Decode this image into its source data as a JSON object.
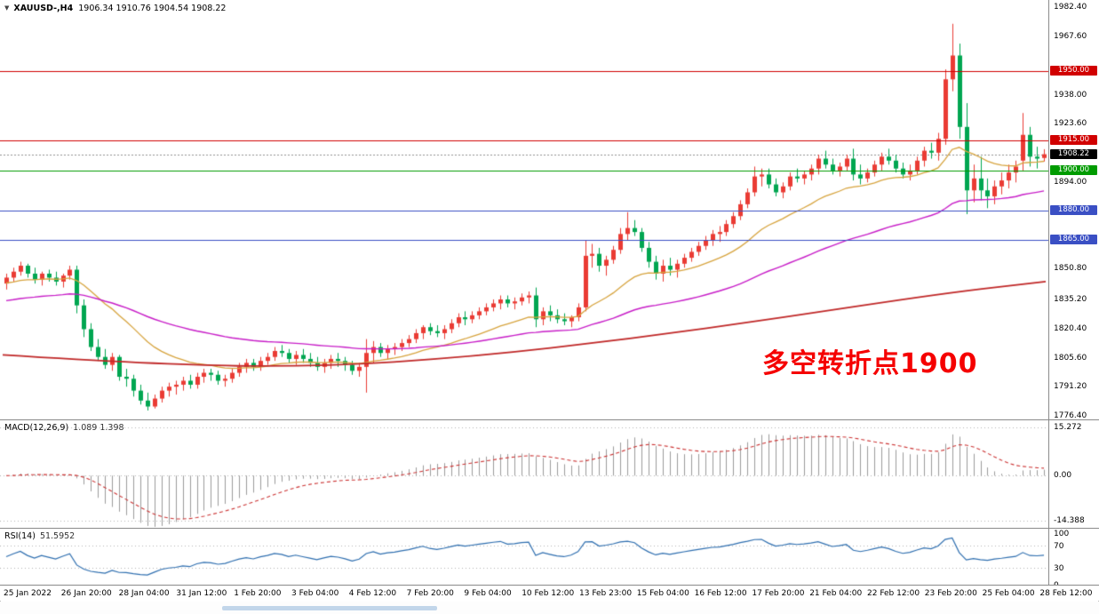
{
  "header": {
    "symbol_period": "XAUUSD-,H4",
    "ohlc": "1906.34 1910.76 1904.54 1908.22"
  },
  "annotation": {
    "text": "多空转折点1900",
    "color": "#f50000"
  },
  "indicators_panel": {
    "macd": {
      "label": "MACD(12,26,9)",
      "values": "1.089 1.398"
    },
    "rsi": {
      "label": "RSI(14)",
      "value": "51.5952"
    }
  },
  "chart_data": {
    "type": "candlestick",
    "symbol": "XAUUSD-",
    "timeframe": "H4",
    "title": "XAUUSD- H4 candlestick chart with MACD and RSI",
    "price_range": [
      1774.5,
      1986.0
    ],
    "y_ticks": [
      "1982.40",
      "1967.60",
      "1938.00",
      "1923.60",
      "1894.00",
      "1850.80",
      "1835.20",
      "1820.40",
      "1805.60",
      "1791.20",
      "1776.40"
    ],
    "x_labels": [
      "25 Jan 2022",
      "26 Jan 20:00",
      "28 Jan 04:00",
      "31 Jan 12:00",
      "1 Feb 20:00",
      "3 Feb 04:00",
      "4 Feb 12:00",
      "7 Feb 20:00",
      "9 Feb 04:00",
      "10 Feb 12:00",
      "13 Feb 23:00",
      "15 Feb 04:00",
      "16 Feb 12:00",
      "17 Feb 20:00",
      "21 Feb 04:00",
      "22 Feb 12:00",
      "23 Feb 20:00",
      "25 Feb 04:00",
      "28 Feb 12:00"
    ],
    "levels": [
      {
        "price": 1950.0,
        "label": "1950.00",
        "color": "#d10000"
      },
      {
        "price": 1915.0,
        "label": "1915.00",
        "color": "#d10000"
      },
      {
        "price": 1900.0,
        "label": "1900.00",
        "color": "#009b00"
      },
      {
        "price": 1880.0,
        "label": "1880.00",
        "color": "#3a4fc4"
      },
      {
        "price": 1865.0,
        "label": "1865.00",
        "color": "#3a4fc4"
      }
    ],
    "current_price": {
      "price": 1908.22,
      "label": "1908.22",
      "bg": "#000000"
    },
    "colors": {
      "bull": "#ea3b34",
      "bear": "#00a651",
      "ma_fast": "#d7a43e",
      "ma_mid": "#c81ec8",
      "ma_slow": "#c02828",
      "macd_hist": "#9c9c9c",
      "macd_signal": "#cc3333",
      "rsi": "#2f6fb0",
      "guide": "#b4b4b4",
      "current_line": "#8f8f8f"
    },
    "ma_fast": {
      "period": 20,
      "seed": 1843
    },
    "ma_mid": {
      "period": 60,
      "seed": 1834
    },
    "ma_slow_points": [
      [
        0,
        1807
      ],
      [
        0.15,
        1802
      ],
      [
        0.3,
        1801
      ],
      [
        0.45,
        1806
      ],
      [
        0.6,
        1815
      ],
      [
        0.75,
        1826
      ],
      [
        0.9,
        1838
      ],
      [
        1,
        1844
      ]
    ],
    "indicators": [
      {
        "name": "MACD",
        "params": [
          12,
          26,
          9
        ],
        "current": [
          1.089,
          1.398
        ],
        "range": [
          -16.5,
          17.5
        ],
        "axis_labels": [
          "15.272",
          "0.00",
          "-14.388"
        ]
      },
      {
        "name": "RSI",
        "params": [
          14
        ],
        "current": 51.5952,
        "range": [
          0,
          100
        ],
        "guide_levels": [
          70,
          30
        ],
        "axis_labels": [
          "100",
          "70",
          "30",
          "0"
        ]
      }
    ],
    "candles": [
      [
        1843,
        1848,
        1840,
        1846
      ],
      [
        1846,
        1851,
        1844,
        1849
      ],
      [
        1849,
        1854,
        1847,
        1852
      ],
      [
        1852,
        1853,
        1846,
        1848
      ],
      [
        1848,
        1851,
        1843,
        1845
      ],
      [
        1845,
        1849,
        1842,
        1848
      ],
      [
        1848,
        1850,
        1844,
        1846
      ],
      [
        1846,
        1849,
        1842,
        1844
      ],
      [
        1844,
        1848,
        1841,
        1847
      ],
      [
        1847,
        1852,
        1845,
        1850
      ],
      [
        1850,
        1852,
        1828,
        1832
      ],
      [
        1832,
        1835,
        1816,
        1820
      ],
      [
        1820,
        1823,
        1809,
        1811
      ],
      [
        1811,
        1815,
        1804,
        1806
      ],
      [
        1806,
        1810,
        1800,
        1802
      ],
      [
        1802,
        1808,
        1799,
        1806
      ],
      [
        1806,
        1807,
        1794,
        1796
      ],
      [
        1796,
        1800,
        1791,
        1795
      ],
      [
        1795,
        1797,
        1786,
        1789
      ],
      [
        1789,
        1792,
        1782,
        1784
      ],
      [
        1784,
        1788,
        1779,
        1781
      ],
      [
        1781,
        1787,
        1780,
        1785
      ],
      [
        1785,
        1791,
        1783,
        1789
      ],
      [
        1789,
        1793,
        1786,
        1791
      ],
      [
        1791,
        1794,
        1787,
        1792
      ],
      [
        1792,
        1796,
        1789,
        1794
      ],
      [
        1794,
        1797,
        1790,
        1792
      ],
      [
        1792,
        1798,
        1790,
        1796
      ],
      [
        1796,
        1800,
        1793,
        1798
      ],
      [
        1798,
        1800,
        1794,
        1797
      ],
      [
        1797,
        1799,
        1792,
        1794
      ],
      [
        1794,
        1797,
        1791,
        1795
      ],
      [
        1795,
        1800,
        1793,
        1798
      ],
      [
        1798,
        1803,
        1796,
        1801
      ],
      [
        1801,
        1805,
        1798,
        1803
      ],
      [
        1803,
        1805,
        1799,
        1801
      ],
      [
        1801,
        1806,
        1799,
        1804
      ],
      [
        1804,
        1808,
        1802,
        1806
      ],
      [
        1806,
        1811,
        1804,
        1809
      ],
      [
        1809,
        1812,
        1806,
        1808
      ],
      [
        1808,
        1810,
        1803,
        1805
      ],
      [
        1805,
        1809,
        1802,
        1807
      ],
      [
        1807,
        1810,
        1803,
        1805
      ],
      [
        1805,
        1808,
        1801,
        1803
      ],
      [
        1803,
        1806,
        1799,
        1801
      ],
      [
        1801,
        1805,
        1798,
        1803
      ],
      [
        1803,
        1807,
        1800,
        1805
      ],
      [
        1805,
        1808,
        1801,
        1804
      ],
      [
        1804,
        1806,
        1799,
        1802
      ],
      [
        1802,
        1804,
        1797,
        1799
      ],
      [
        1799,
        1803,
        1796,
        1801
      ],
      [
        1801,
        1815,
        1788,
        1808
      ],
      [
        1808,
        1814,
        1803,
        1811
      ],
      [
        1811,
        1813,
        1806,
        1808
      ],
      [
        1808,
        1812,
        1805,
        1810
      ],
      [
        1810,
        1813,
        1807,
        1811
      ],
      [
        1811,
        1815,
        1809,
        1813
      ],
      [
        1813,
        1817,
        1811,
        1815
      ],
      [
        1815,
        1820,
        1813,
        1818
      ],
      [
        1818,
        1822,
        1815,
        1821
      ],
      [
        1821,
        1823,
        1817,
        1819
      ],
      [
        1819,
        1822,
        1816,
        1818
      ],
      [
        1818,
        1822,
        1815,
        1820
      ],
      [
        1820,
        1825,
        1818,
        1823
      ],
      [
        1823,
        1828,
        1821,
        1826
      ],
      [
        1826,
        1829,
        1822,
        1825
      ],
      [
        1825,
        1829,
        1823,
        1827
      ],
      [
        1827,
        1831,
        1825,
        1829
      ],
      [
        1829,
        1833,
        1827,
        1831
      ],
      [
        1831,
        1835,
        1829,
        1833
      ],
      [
        1833,
        1837,
        1830,
        1835
      ],
      [
        1835,
        1837,
        1831,
        1833
      ],
      [
        1833,
        1836,
        1830,
        1834
      ],
      [
        1834,
        1838,
        1832,
        1836
      ],
      [
        1836,
        1839,
        1833,
        1837
      ],
      [
        1837,
        1841,
        1821,
        1825
      ],
      [
        1825,
        1831,
        1822,
        1829
      ],
      [
        1829,
        1832,
        1824,
        1827
      ],
      [
        1827,
        1830,
        1823,
        1825
      ],
      [
        1825,
        1828,
        1822,
        1824
      ],
      [
        1824,
        1827,
        1821,
        1826
      ],
      [
        1826,
        1833,
        1824,
        1831
      ],
      [
        1831,
        1865,
        1829,
        1857
      ],
      [
        1857,
        1863,
        1851,
        1858
      ],
      [
        1858,
        1861,
        1849,
        1852
      ],
      [
        1852,
        1857,
        1847,
        1855
      ],
      [
        1855,
        1862,
        1853,
        1860
      ],
      [
        1860,
        1871,
        1858,
        1868
      ],
      [
        1868,
        1879,
        1865,
        1871
      ],
      [
        1871,
        1875,
        1867,
        1869
      ],
      [
        1869,
        1871,
        1859,
        1861
      ],
      [
        1861,
        1864,
        1851,
        1854
      ],
      [
        1854,
        1857,
        1845,
        1848
      ],
      [
        1848,
        1855,
        1844,
        1852
      ],
      [
        1852,
        1856,
        1847,
        1850
      ],
      [
        1850,
        1855,
        1846,
        1853
      ],
      [
        1853,
        1858,
        1851,
        1856
      ],
      [
        1856,
        1861,
        1854,
        1859
      ],
      [
        1859,
        1864,
        1857,
        1862
      ],
      [
        1862,
        1867,
        1860,
        1865
      ],
      [
        1865,
        1870,
        1862,
        1868
      ],
      [
        1868,
        1872,
        1864,
        1869
      ],
      [
        1869,
        1875,
        1867,
        1873
      ],
      [
        1873,
        1879,
        1871,
        1877
      ],
      [
        1877,
        1885,
        1875,
        1883
      ],
      [
        1883,
        1891,
        1881,
        1889
      ],
      [
        1889,
        1902,
        1887,
        1897
      ],
      [
        1897,
        1901,
        1892,
        1898
      ],
      [
        1898,
        1901,
        1891,
        1893
      ],
      [
        1893,
        1896,
        1887,
        1889
      ],
      [
        1889,
        1894,
        1886,
        1892
      ],
      [
        1892,
        1899,
        1890,
        1897
      ],
      [
        1897,
        1901,
        1894,
        1896
      ],
      [
        1896,
        1900,
        1893,
        1898
      ],
      [
        1898,
        1903,
        1895,
        1901
      ],
      [
        1901,
        1908,
        1898,
        1906
      ],
      [
        1906,
        1910,
        1901,
        1903
      ],
      [
        1903,
        1906,
        1898,
        1900
      ],
      [
        1900,
        1904,
        1897,
        1902
      ],
      [
        1902,
        1908,
        1900,
        1906
      ],
      [
        1906,
        1911,
        1895,
        1898
      ],
      [
        1898,
        1903,
        1893,
        1896
      ],
      [
        1896,
        1901,
        1894,
        1899
      ],
      [
        1899,
        1905,
        1897,
        1903
      ],
      [
        1903,
        1909,
        1900,
        1907
      ],
      [
        1907,
        1911,
        1903,
        1905
      ],
      [
        1905,
        1908,
        1899,
        1901
      ],
      [
        1901,
        1904,
        1896,
        1898
      ],
      [
        1898,
        1903,
        1895,
        1900
      ],
      [
        1900,
        1907,
        1898,
        1905
      ],
      [
        1905,
        1912,
        1902,
        1910
      ],
      [
        1910,
        1914,
        1906,
        1909
      ],
      [
        1909,
        1919,
        1905,
        1916
      ],
      [
        1916,
        1951,
        1913,
        1946
      ],
      [
        1946,
        1974,
        1940,
        1958
      ],
      [
        1958,
        1964,
        1916,
        1922
      ],
      [
        1922,
        1934,
        1878,
        1890
      ],
      [
        1890,
        1903,
        1884,
        1896
      ],
      [
        1896,
        1907,
        1885,
        1890
      ],
      [
        1890,
        1896,
        1881,
        1887
      ],
      [
        1887,
        1895,
        1883,
        1892
      ],
      [
        1892,
        1899,
        1888,
        1895
      ],
      [
        1895,
        1903,
        1891,
        1899
      ],
      [
        1899,
        1905,
        1894,
        1902
      ],
      [
        1905,
        1929,
        1900,
        1918
      ],
      [
        1918,
        1922,
        1902,
        1907
      ],
      [
        1907,
        1912,
        1901,
        1906
      ],
      [
        1906.34,
        1910.76,
        1904.54,
        1908.22
      ]
    ]
  }
}
